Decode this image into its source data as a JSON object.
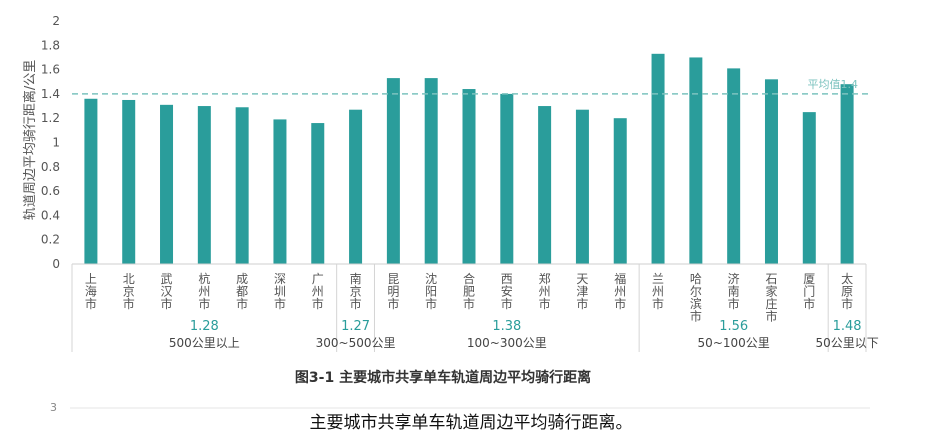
{
  "chart_data": {
    "type": "bar",
    "title": "图3-1 主要城市共享单车轨道周边平均骑行距离",
    "ylabel": "轨道周边平均骑行距离/公里",
    "xlabel": "",
    "ylim": [
      0,
      2
    ],
    "yticks": [
      "0",
      "0.2",
      "0.4",
      "0.6",
      "0.8",
      "1",
      "1.2",
      "1.4",
      "1.6",
      "1.8",
      "2"
    ],
    "grid": false,
    "categories": [
      "上海市",
      "北京市",
      "武汉市",
      "杭州市",
      "成都市",
      "深圳市",
      "广州市",
      "南京市",
      "昆明市",
      "沈阳市",
      "合肥市",
      "西安市",
      "郑州市",
      "天津市",
      "福州市",
      "兰州市",
      "哈尔滨市",
      "济南市",
      "石家庄市",
      "厦门市",
      "太原市"
    ],
    "values": [
      1.36,
      1.35,
      1.31,
      1.3,
      1.29,
      1.19,
      1.16,
      1.27,
      1.53,
      1.53,
      1.44,
      1.4,
      1.3,
      1.27,
      1.2,
      1.73,
      1.7,
      1.61,
      1.52,
      1.25,
      1.48
    ],
    "bar_color": "#2a9d9b",
    "reference_line": {
      "value": 1.4,
      "label": "平均值1.4",
      "color": "#7cc3bf"
    },
    "groups": [
      {
        "label": "500公里以上",
        "avg": "1.28",
        "start": 0,
        "end": 6
      },
      {
        "label": "300~500公里",
        "avg": "1.27",
        "start": 7,
        "end": 7
      },
      {
        "label": "100~300公里",
        "avg": "1.38",
        "start": 8,
        "end": 14
      },
      {
        "label": "50~100公里",
        "avg": "1.56",
        "start": 15,
        "end": 19
      },
      {
        "label": "50公里以下",
        "avg": "1.48",
        "start": 20,
        "end": 20
      }
    ],
    "avg_color": "#2a9d9b"
  },
  "next_chart_tick": "3",
  "caption": "主要城市共享单车轨道周边平均骑行距离。"
}
